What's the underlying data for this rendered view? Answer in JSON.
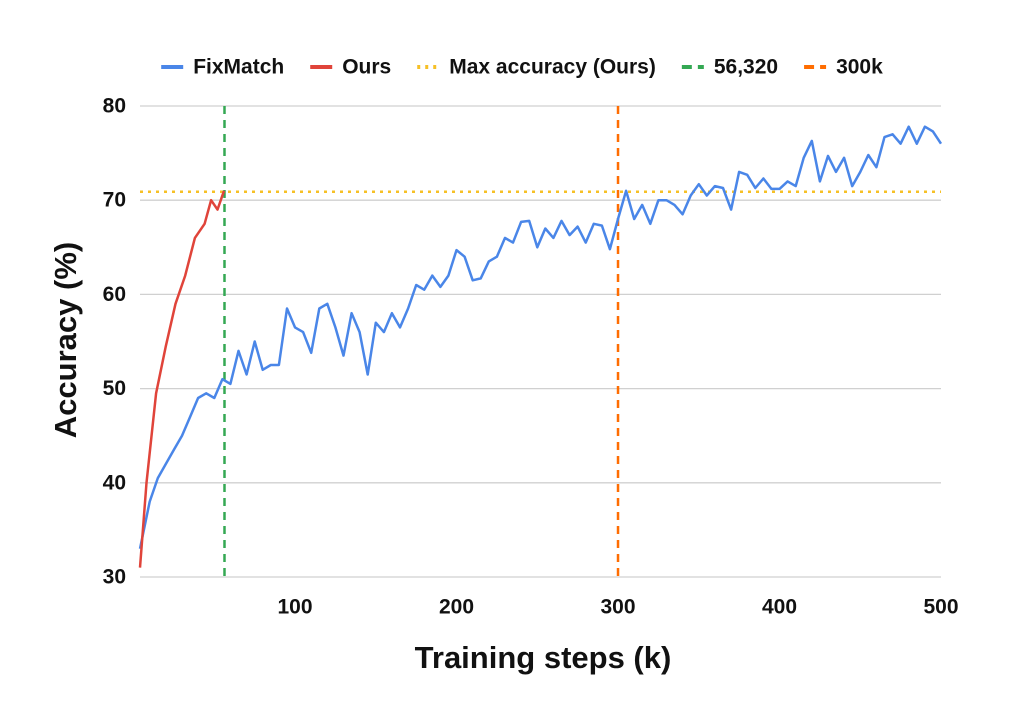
{
  "chart_data": {
    "type": "line",
    "x_label": "Training steps (k)",
    "y_label": "Accuracy (%)",
    "xlim": [
      4,
      500
    ],
    "xticks": [
      100,
      200,
      300,
      400,
      500
    ],
    "ylim": [
      30,
      80
    ],
    "yticks": [
      30,
      40,
      50,
      60,
      70,
      80
    ],
    "grid": true,
    "legend": "top",
    "series": [
      {
        "name": "FixMatch",
        "color": "#4a86e8",
        "x": [
          4,
          10,
          15,
          20,
          25,
          30,
          35,
          40,
          45,
          50,
          55,
          60,
          65,
          70,
          75,
          80,
          85,
          90,
          95,
          100,
          105,
          110,
          115,
          120,
          125,
          130,
          135,
          140,
          145,
          150,
          155,
          160,
          165,
          170,
          175,
          180,
          185,
          190,
          195,
          200,
          205,
          210,
          215,
          220,
          225,
          230,
          235,
          240,
          245,
          250,
          255,
          260,
          265,
          270,
          275,
          280,
          285,
          290,
          295,
          300,
          305,
          310,
          315,
          320,
          325,
          330,
          335,
          340,
          345,
          350,
          355,
          360,
          365,
          370,
          375,
          380,
          385,
          390,
          395,
          400,
          405,
          410,
          415,
          420,
          425,
          430,
          435,
          440,
          445,
          450,
          455,
          460,
          465,
          470,
          475,
          480,
          485,
          490,
          495,
          500
        ],
        "values": [
          33,
          38,
          40.5,
          42,
          43.5,
          45,
          47,
          49,
          49.5,
          49,
          51,
          50.5,
          54,
          51.5,
          55,
          52,
          52.5,
          52.5,
          58.5,
          56.5,
          56,
          53.8,
          58.5,
          59,
          56.5,
          53.5,
          58,
          56,
          51.5,
          57,
          56,
          58,
          56.5,
          58.5,
          61,
          60.5,
          62,
          60.8,
          62,
          64.7,
          64,
          61.5,
          61.7,
          63.5,
          64,
          66,
          65.5,
          67.7,
          67.8,
          65,
          67,
          66,
          67.8,
          66.3,
          67.2,
          65.5,
          67.5,
          67.3,
          64.8,
          68,
          71,
          68,
          69.5,
          67.5,
          70,
          70,
          69.5,
          68.5,
          70.5,
          71.7,
          70.5,
          71.5,
          71.3,
          69,
          73,
          72.7,
          71.3,
          72.3,
          71.2,
          71.2,
          72,
          71.5,
          74.5,
          76.3,
          72,
          74.7,
          73,
          74.5,
          71.5,
          73,
          74.8,
          73.5,
          76.7,
          77,
          76,
          77.8,
          76,
          77.8,
          77.3,
          76
        ]
      },
      {
        "name": "Ours",
        "color": "#e0443a",
        "x": [
          4,
          8,
          14,
          20,
          26,
          32,
          38,
          44,
          48,
          52,
          56
        ],
        "values": [
          31,
          40,
          49.5,
          54.5,
          59,
          62,
          66,
          67.5,
          70,
          69,
          71
        ]
      }
    ],
    "reference_lines": [
      {
        "name": "Max accuracy (Ours)",
        "color": "#f6c026",
        "axis": "y",
        "value": 70.9,
        "style": "dotted"
      },
      {
        "name": "56,320",
        "color": "#34a853",
        "axis": "x",
        "value": 56.32,
        "style": "dashed"
      },
      {
        "name": "300k",
        "color": "#ff6d01",
        "axis": "x",
        "value": 300,
        "style": "dashed"
      }
    ]
  }
}
